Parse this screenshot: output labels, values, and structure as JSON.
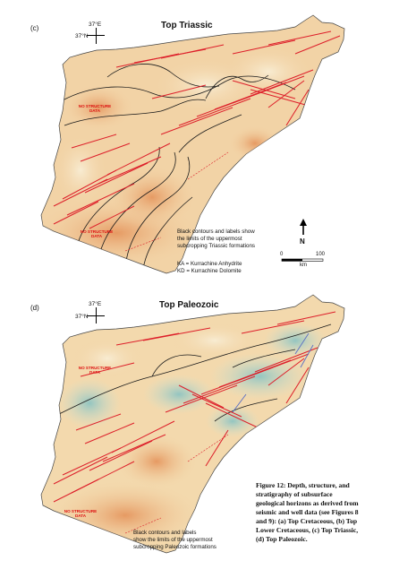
{
  "panel_c": {
    "letter": "(c)",
    "title": "Top Triassic",
    "lon_label": "37°E",
    "lat_label": "37°N",
    "no_data_labels": [
      "NO STRUCTURE DATA",
      "NO STRUCTURE DATA"
    ],
    "legend_lines": [
      "Black contours and labels show",
      "the limits of the uppermost",
      "subcropping Triassic formations"
    ],
    "abbrev_lines": [
      "KA = Kurrachine Anhydrite",
      "KD = Kurrachine  Dolomite"
    ]
  },
  "panel_d": {
    "letter": "(d)",
    "title": "Top Paleozoic",
    "lon_label": "37°E",
    "lat_label": "37°N",
    "no_data_labels": [
      "NO STRUCTURE DATA",
      "NO STRUCTURE DATA"
    ],
    "legend_lines": [
      "Black contours and labels",
      "show the limits of the uppermost",
      "subcropping Paleozoic formations"
    ]
  },
  "north_arrow": {
    "label": "N"
  },
  "scale_bar": {
    "start": "0",
    "end": "100",
    "unit": "km"
  },
  "caption_lines": [
    "Figure 12: Depth, structure, and",
    "stratigraphy of subsurface",
    "geological horizons as derived from",
    "seismic and well data (see Figures 8",
    "and 9): (a) Top Cretaceous, (b) Top",
    "Lower Cretaceous, (c) Top Triassic,",
    "(d) Top Paleozoic."
  ],
  "colors": {
    "map_base": "#f2d3a6",
    "map_deep": "#e9a36d",
    "map_shallow": "#f7e6c3",
    "map_teal": "#9fc9c4",
    "fault_red": "#dd1f2a",
    "contour_black": "#1b1b1b"
  }
}
